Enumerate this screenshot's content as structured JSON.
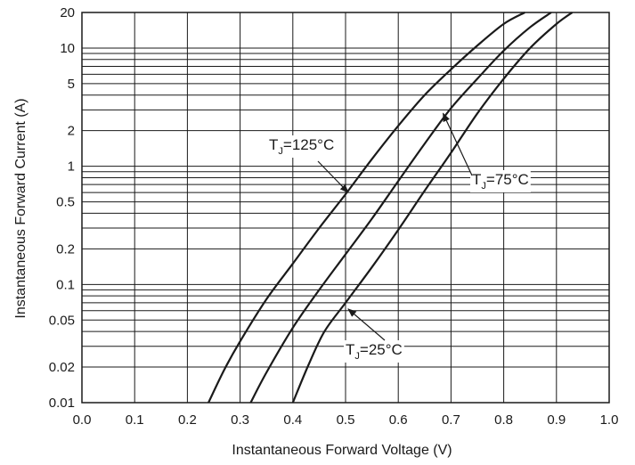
{
  "chart_data": {
    "type": "line",
    "xlabel": "Instantaneous Forward Voltage (V)",
    "ylabel": "Instantaneous Forward Current (A)",
    "x_scale": "linear",
    "y_scale": "log",
    "xlim": [
      0.0,
      1.0
    ],
    "ylim": [
      0.01,
      20
    ],
    "x_ticks": [
      "0.0",
      "0.1",
      "0.2",
      "0.3",
      "0.4",
      "0.5",
      "0.6",
      "0.7",
      "0.8",
      "0.9",
      "1.0"
    ],
    "y_ticks": [
      "0.01",
      "0.02",
      "0.05",
      "0.1",
      "0.2",
      "0.5",
      "1",
      "2",
      "5",
      "10",
      "20"
    ],
    "grid": true,
    "series": [
      {
        "name": "TJ=125°C",
        "x": [
          0.24,
          0.27,
          0.3,
          0.35,
          0.4,
          0.45,
          0.5,
          0.55,
          0.6,
          0.65,
          0.7,
          0.75,
          0.8,
          0.84
        ],
        "y": [
          0.01,
          0.019,
          0.033,
          0.075,
          0.15,
          0.3,
          0.58,
          1.15,
          2.2,
          4.0,
          6.6,
          10.5,
          16.0,
          20
        ]
      },
      {
        "name": "TJ=75°C",
        "x": [
          0.32,
          0.35,
          0.4,
          0.45,
          0.5,
          0.55,
          0.6,
          0.65,
          0.7,
          0.75,
          0.8,
          0.85,
          0.89
        ],
        "y": [
          0.01,
          0.018,
          0.043,
          0.09,
          0.18,
          0.36,
          0.75,
          1.55,
          3.1,
          5.5,
          9.5,
          15.0,
          20
        ]
      },
      {
        "name": "TJ=25°C",
        "x": [
          0.4,
          0.43,
          0.46,
          0.5,
          0.55,
          0.6,
          0.65,
          0.7,
          0.75,
          0.8,
          0.85,
          0.9,
          0.93
        ],
        "y": [
          0.01,
          0.021,
          0.04,
          0.07,
          0.14,
          0.29,
          0.62,
          1.3,
          2.8,
          5.5,
          10.0,
          16.0,
          20
        ]
      }
    ],
    "annotations": [
      {
        "text": "T",
        "sub": "J",
        "rest": "=125°C",
        "target": [
          0.505,
          0.6
        ]
      },
      {
        "text": "T",
        "sub": "J",
        "rest": "=75°C",
        "target": [
          0.685,
          2.8
        ]
      },
      {
        "text": "T",
        "sub": "J",
        "rest": "=25°C",
        "target": [
          0.505,
          0.062
        ]
      }
    ]
  }
}
